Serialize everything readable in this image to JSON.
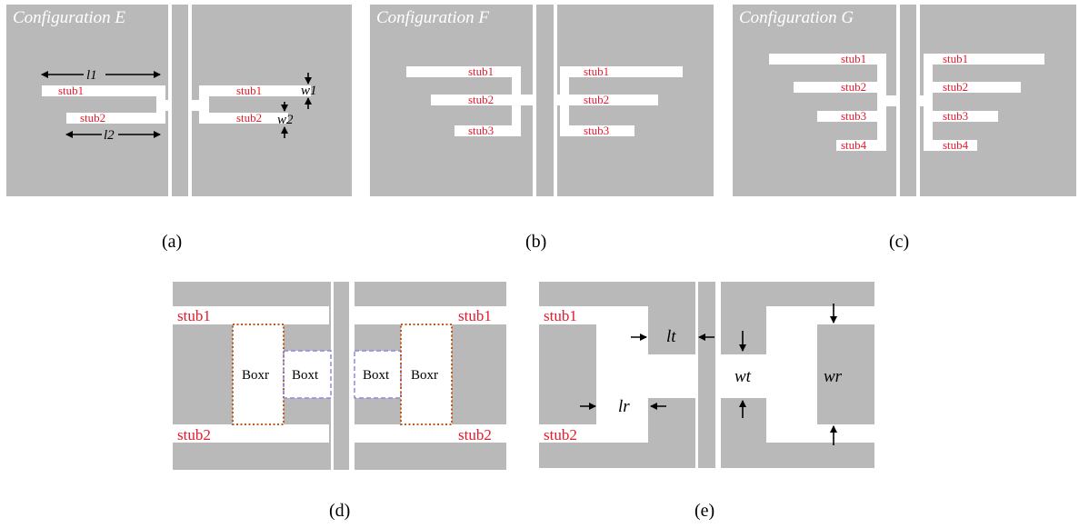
{
  "panels": {
    "a": {
      "title": "Configuration E",
      "caption": "(a)",
      "stubs": [
        "stub1",
        "stub2",
        "stub1",
        "stub2"
      ],
      "dims": [
        "l1",
        "l2",
        "w1",
        "w2"
      ]
    },
    "b": {
      "title": "Configuration F",
      "caption": "(b)",
      "stubs": [
        "stub1",
        "stub2",
        "stub3",
        "stub1",
        "stub2",
        "stub3"
      ]
    },
    "c": {
      "title": "Configuration G",
      "caption": "(c)",
      "stubs": [
        "stub1",
        "stub2",
        "stub3",
        "stub4",
        "stub1",
        "stub2",
        "stub3",
        "stub4"
      ]
    },
    "d": {
      "caption": "(d)",
      "stubs": [
        "stub1",
        "stub2",
        "stub1",
        "stub2"
      ],
      "boxes": [
        "Boxr",
        "Boxt",
        "Boxt",
        "Boxr"
      ]
    },
    "e": {
      "caption": "(e)",
      "stubs": [
        "stub1",
        "stub2"
      ],
      "dims": [
        "lt",
        "lr",
        "wt",
        "wr"
      ]
    }
  },
  "colors": {
    "metal": "#b9b9b9",
    "label": "#e8192c",
    "boxr_outline": "#c0581a",
    "boxt_outline": "#8a8ae0"
  }
}
